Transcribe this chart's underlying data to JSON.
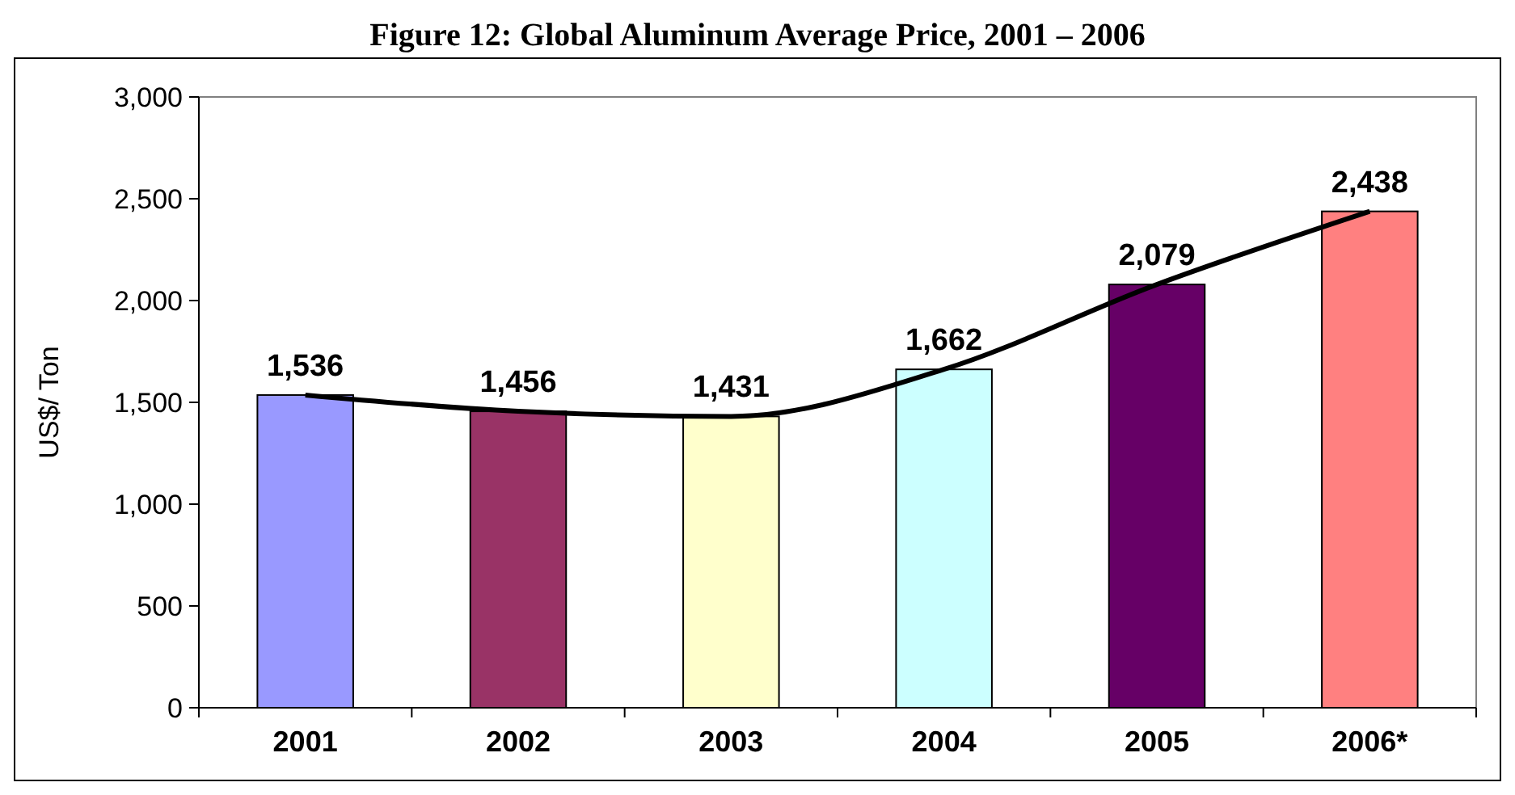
{
  "chart_data": {
    "type": "bar",
    "title": "Figure 12: Global Aluminum Average Price, 2001 – 2006",
    "ylabel": "US$/ Ton",
    "categories": [
      "2001",
      "2002",
      "2003",
      "2004",
      "2005",
      "2006*"
    ],
    "series": [
      {
        "colors": [
          "#9999ff",
          "#993366",
          "#ffffcc",
          "#ccffff",
          "#660066",
          "#ff8080"
        ],
        "values": [
          1536,
          1456,
          1431,
          1662,
          2079,
          2438
        ],
        "value_labels": [
          "1,536",
          "1,456",
          "1,431",
          "1,662",
          "2,079",
          "2,438"
        ]
      },
      {
        "type": "line",
        "color": "#000000",
        "values": [
          1536,
          1456,
          1431,
          1662,
          2079,
          2438
        ]
      }
    ],
    "ylim": [
      0,
      3000
    ],
    "yticks": [
      0,
      500,
      {
        "value": 1000,
        "label": "1,000"
      },
      {
        "value": 1500,
        "label": "1,500"
      },
      {
        "value": 2000,
        "label": "2,000"
      },
      {
        "value": 2500,
        "label": "2,500"
      },
      {
        "value": 3000,
        "label": "3,000"
      }
    ],
    "marker": "none"
  }
}
